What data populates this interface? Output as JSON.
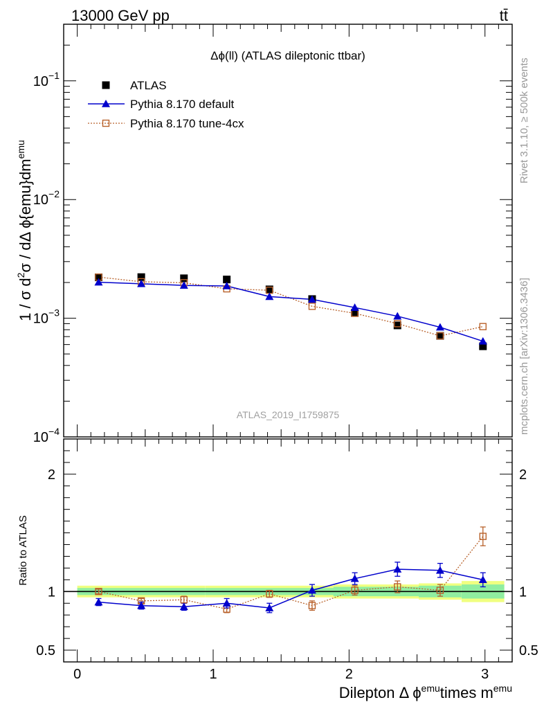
{
  "header": {
    "left": "13000 GeV pp",
    "right": "tt̄"
  },
  "side": {
    "rivet": "Rivet 3.1.10, ≥ 500k events",
    "mcplots": "mcplots.cern.ch [arXiv:1306.3436]"
  },
  "chart_data": [
    {
      "type": "scatter",
      "title": "Δϕ(ll) (ATLAS dileptonic ttbar)",
      "analysis_label": "ATLAS_2019_I1759875",
      "ylabel": "1 / σ  d²σ / dΔ ϕ{emu}dm^emu",
      "yscale": "log",
      "ylim": [
        0.0001,
        0.3
      ],
      "xlim": [
        -0.1,
        3.2
      ],
      "ytick_labels": [
        "10⁻⁴",
        "10⁻³",
        "10⁻²",
        "10⁻¹"
      ],
      "legend_position": "top-left",
      "x": [
        0.157,
        0.471,
        0.785,
        1.1,
        1.414,
        1.728,
        2.042,
        2.356,
        2.67,
        2.985
      ],
      "series": [
        {
          "name": "ATLAS",
          "color": "#000000",
          "marker": "filled-square",
          "values": [
            0.00221,
            0.00222,
            0.00217,
            0.00212,
            0.00175,
            0.00145,
            0.00111,
            0.00087,
            0.00071,
            0.00058
          ]
        },
        {
          "name": "Pythia 8.170 default",
          "color": "#0000cc",
          "marker": "filled-triangle",
          "values": [
            0.00201,
            0.00195,
            0.00189,
            0.00187,
            0.00152,
            0.00144,
            0.00123,
            0.00104,
            0.00084,
            0.00064
          ]
        },
        {
          "name": "Pythia 8.170 tune-4cx",
          "color": "#b8612a",
          "marker": "open-square",
          "values": [
            0.00222,
            0.00203,
            0.00199,
            0.00177,
            0.00172,
            0.00126,
            0.0011,
            0.0009,
            0.00071,
            0.00085
          ]
        }
      ]
    },
    {
      "type": "scatter",
      "ylabel": "Ratio to ATLAS",
      "xlabel": "Dilepton Δ ϕ^emu times m^emu",
      "ylim": [
        0.4,
        2.3
      ],
      "xlim": [
        -0.1,
        3.2
      ],
      "xtick_labels": [
        "0",
        "1",
        "2",
        "3"
      ],
      "ytick_labels": [
        "0.5",
        "1",
        "2"
      ],
      "x": [
        0.157,
        0.471,
        0.785,
        1.1,
        1.414,
        1.728,
        2.042,
        2.356,
        2.67,
        2.985
      ],
      "band_inner_half": [
        0.03,
        0.03,
        0.03,
        0.03,
        0.03,
        0.03,
        0.04,
        0.04,
        0.05,
        0.06
      ],
      "band_outer_half": [
        0.05,
        0.05,
        0.05,
        0.05,
        0.05,
        0.05,
        0.06,
        0.06,
        0.07,
        0.09
      ],
      "series": [
        {
          "name": "Pythia 8.170 default",
          "color": "#0000cc",
          "values": [
            0.91,
            0.88,
            0.87,
            0.9,
            0.86,
            1.01,
            1.11,
            1.19,
            1.18,
            1.1
          ],
          "errors": [
            0.03,
            0.03,
            0.03,
            0.04,
            0.04,
            0.05,
            0.05,
            0.06,
            0.06,
            0.06
          ]
        },
        {
          "name": "Pythia 8.170 tune-4cx",
          "color": "#b8612a",
          "values": [
            1.0,
            0.92,
            0.93,
            0.85,
            0.98,
            0.88,
            1.01,
            1.04,
            1.01,
            1.47
          ],
          "errors": [
            0.02,
            0.02,
            0.03,
            0.03,
            0.03,
            0.04,
            0.04,
            0.05,
            0.05,
            0.08
          ]
        }
      ]
    }
  ]
}
